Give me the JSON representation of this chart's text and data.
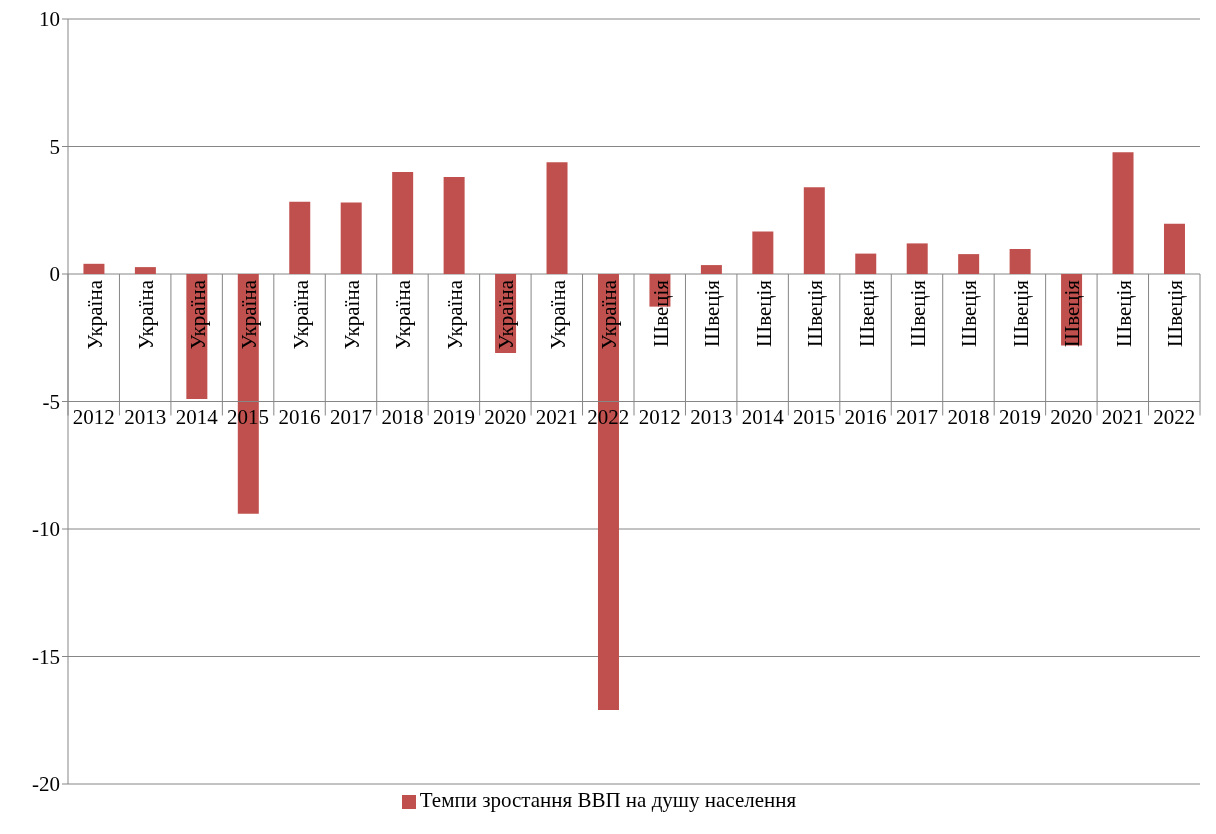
{
  "chart_data": {
    "type": "bar",
    "categories": [
      "Україна 2012",
      "Україна 2013",
      "Україна 2014",
      "Україна 2015",
      "Україна 2016",
      "Україна 2017",
      "Україна 2018",
      "Україна 2019",
      "Україна 2020",
      "Україна 2021",
      "Україна 2022",
      "Швеція 2012",
      "Швеція 2013",
      "Швеція 2014",
      "Швеція 2015",
      "Швеція 2016",
      "Швеція 2017",
      "Швеція 2018",
      "Швеція 2019",
      "Швеція 2020",
      "Швеція 2021",
      "Швеція 2022"
    ],
    "series": [
      {
        "name": "Темпи зростання ВВП на душу населення",
        "color": "#c0504d",
        "values": [
          0.4,
          0.27,
          -4.9,
          -9.4,
          2.83,
          2.8,
          4.0,
          3.8,
          -3.1,
          4.38,
          -17.1,
          -1.28,
          0.35,
          1.67,
          3.4,
          0.8,
          1.2,
          0.78,
          0.98,
          -2.8,
          4.77,
          1.97
        ]
      }
    ],
    "ylim": [
      -20,
      10
    ],
    "yticks": [
      -20,
      -15,
      -10,
      -5,
      0,
      5,
      10
    ],
    "grid": "y",
    "legend": "bottom"
  }
}
